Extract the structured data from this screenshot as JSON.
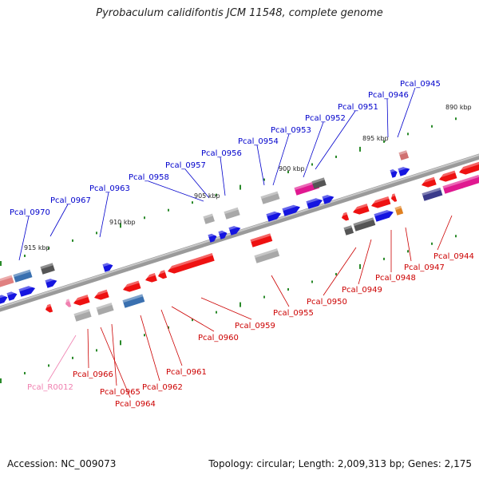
{
  "title": "Pyrobaculum calidifontis JCM 11548, complete genome",
  "footer": {
    "accession": "Accession: NC_009073",
    "summary": "Topology: circular; Length: 2,009,313 bp; Genes: 2,175"
  },
  "colors": {
    "forward_label": "#0000cc",
    "reverse_label": "#cc0000",
    "rna_label": "#f080b0",
    "scale_ticks": "#2a8a2a",
    "backbone": "#808080"
  },
  "scale_markers": [
    "890 kbp",
    "895 kbp",
    "900 kbp",
    "905 kbp",
    "910 kbp",
    "915 kbp"
  ],
  "upper_gene_labels": [
    "Pcal_0945",
    "Pcal_0946",
    "Pcal_0951",
    "Pcal_0952",
    "Pcal_0953",
    "Pcal_0954",
    "Pcal_0956",
    "Pcal_0957",
    "Pcal_0958",
    "Pcal_0963",
    "Pcal_0967",
    "Pcal_0970"
  ],
  "lower_gene_labels": [
    "Pcal_0944",
    "Pcal_0947",
    "Pcal_0948",
    "Pcal_0949",
    "Pcal_0950",
    "Pcal_0955",
    "Pcal_0959",
    "Pcal_0960",
    "Pcal_0961",
    "Pcal_0962",
    "Pcal_0964",
    "Pcal_0965",
    "Pcal_0966",
    "Pcal_R0012"
  ]
}
